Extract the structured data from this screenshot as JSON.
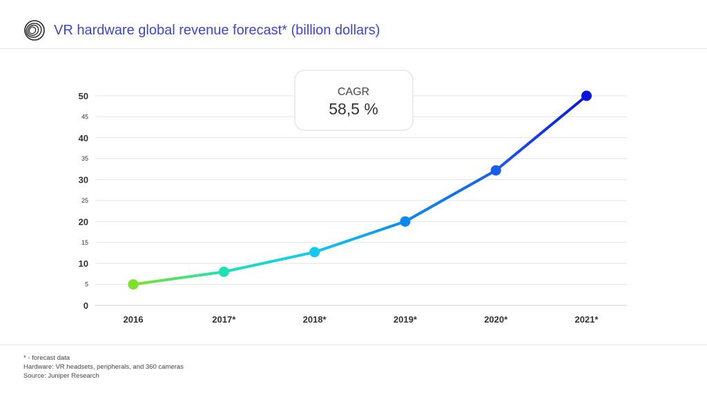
{
  "header": {
    "title": "VR hardware global revenue forecast* (billion dollars)",
    "logo_icon": "spiral-logo-icon"
  },
  "chart_data": {
    "type": "line",
    "title": "VR hardware global revenue forecast* (billion dollars)",
    "categories": [
      "2016",
      "2017*",
      "2018*",
      "2019*",
      "2020*",
      "2021*"
    ],
    "series": [
      {
        "values": [
          5,
          8,
          12.7,
          20,
          32.2,
          50
        ]
      }
    ],
    "y_ticks": [
      0,
      5,
      10,
      15,
      20,
      25,
      30,
      35,
      40,
      45,
      50
    ],
    "ylim": [
      0,
      50
    ],
    "grid": true,
    "gradient_colors": [
      "#7ee02a",
      "#1ee0b4",
      "#12c8f0",
      "#0a8af0",
      "#1a5cf0",
      "#0a14e0"
    ],
    "annotation": {
      "label": "CAGR",
      "value": "58,5 %"
    }
  },
  "footer": {
    "note1": "* - forecast data",
    "note2": "Hardware: VR headsets, peripherals, and 360 cameras",
    "source": "Source: Juniper Research"
  }
}
